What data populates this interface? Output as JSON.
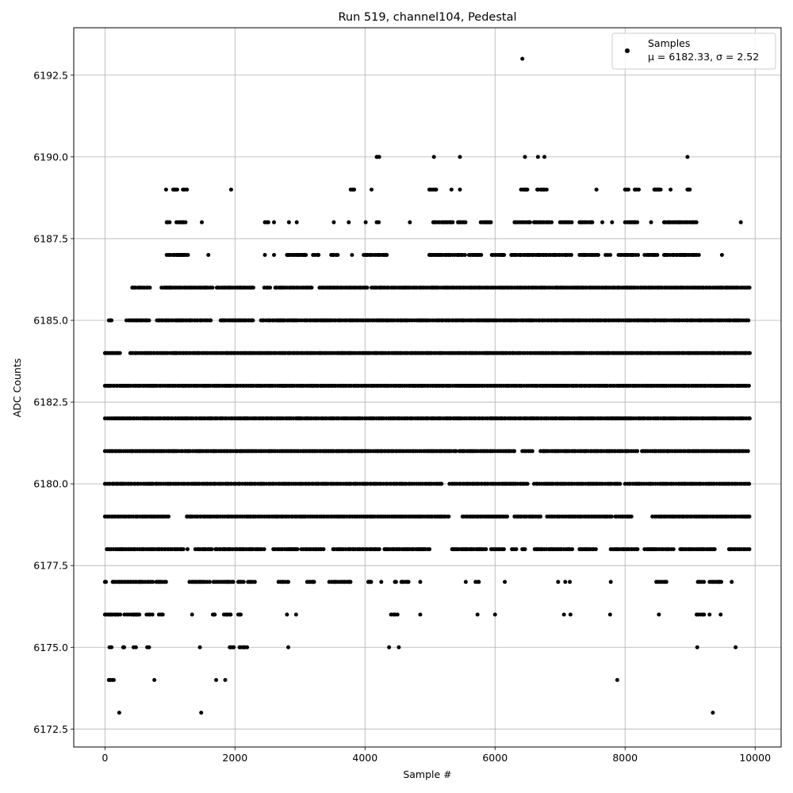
{
  "chart_data": {
    "type": "scatter",
    "title": "Run 519, channel104, Pedestal",
    "xlabel": "Sample #",
    "ylabel": "ADC Counts",
    "xlim": [
      -480,
      10400
    ],
    "ylim": [
      6171.95,
      6193.95
    ],
    "xticks": [
      0,
      2000,
      4000,
      6000,
      8000,
      10000
    ],
    "yticks": [
      6172.5,
      6175.0,
      6177.5,
      6180.0,
      6182.5,
      6185.0,
      6187.5,
      6190.0,
      6192.5
    ],
    "xtick_labels": [
      "0",
      "2000",
      "4000",
      "6000",
      "8000",
      "10000"
    ],
    "ytick_labels": [
      "6172.5",
      "6175.0",
      "6177.5",
      "6180.0",
      "6182.5",
      "6185.0",
      "6187.5",
      "6190.0",
      "6192.5"
    ],
    "grid": true,
    "legend_position": "top-right",
    "series": [
      {
        "name": "Samples",
        "legend_stats": "μ = 6182.33, σ = 2.52",
        "marker": "circle",
        "color": "#000000",
        "level_ranges": [
          {
            "y": 6193,
            "x": [
              [
                6420,
                6420
              ]
            ]
          },
          {
            "y": 6190,
            "x": [
              [
                4180,
                4220
              ],
              [
                5060,
                5060
              ],
              [
                5460,
                5460
              ],
              [
                6460,
                6460
              ],
              [
                6660,
                6660
              ],
              [
                6760,
                6760
              ],
              [
                8960,
                8960
              ]
            ]
          },
          {
            "y": 6189,
            "x": [
              [
                940,
                940
              ],
              [
                1050,
                1120
              ],
              [
                1200,
                1280
              ],
              [
                1940,
                1940
              ],
              [
                3780,
                3850
              ],
              [
                4100,
                4100
              ],
              [
                4990,
                5100
              ],
              [
                5330,
                5330
              ],
              [
                5460,
                5460
              ],
              [
                6400,
                6520
              ],
              [
                6650,
                6800
              ],
              [
                7560,
                7560
              ],
              [
                8000,
                8060
              ],
              [
                8150,
                8220
              ],
              [
                8450,
                8550
              ],
              [
                8700,
                8700
              ],
              [
                8960,
                9000
              ]
            ]
          },
          {
            "y": 6188,
            "x": [
              [
                950,
                1000
              ],
              [
                1100,
                1270
              ],
              [
                1490,
                1490
              ],
              [
                2460,
                2520
              ],
              [
                2600,
                2600
              ],
              [
                2830,
                2830
              ],
              [
                2950,
                2950
              ],
              [
                3520,
                3520
              ],
              [
                3750,
                3750
              ],
              [
                4010,
                4010
              ],
              [
                4180,
                4220
              ],
              [
                4690,
                4690
              ],
              [
                5050,
                5350
              ],
              [
                5430,
                5550
              ],
              [
                5780,
                5950
              ],
              [
                6300,
                6550
              ],
              [
                6600,
                6700
              ],
              [
                6700,
                6900
              ],
              [
                7000,
                7200
              ],
              [
                7300,
                7500
              ],
              [
                7650,
                7650
              ],
              [
                7800,
                7800
              ],
              [
                8000,
                8200
              ],
              [
                8400,
                8400
              ],
              [
                8600,
                9100
              ],
              [
                9780,
                9780
              ]
            ]
          },
          {
            "y": 6187,
            "x": [
              [
                950,
                1300
              ],
              [
                1590,
                1590
              ],
              [
                2460,
                2460
              ],
              [
                2600,
                2600
              ],
              [
                2800,
                3100
              ],
              [
                3200,
                3300
              ],
              [
                3480,
                3580
              ],
              [
                3800,
                3800
              ],
              [
                3980,
                4360
              ],
              [
                4990,
                5550
              ],
              [
                5600,
                5800
              ],
              [
                5950,
                6150
              ],
              [
                6250,
                7200
              ],
              [
                7300,
                7600
              ],
              [
                7700,
                7800
              ],
              [
                7900,
                8200
              ],
              [
                8300,
                8500
              ],
              [
                8600,
                9150
              ],
              [
                9490,
                9490
              ]
            ]
          },
          {
            "y": 6186,
            "x": [
              [
                420,
                720
              ],
              [
                870,
                1660
              ],
              [
                1720,
                2300
              ],
              [
                2450,
                2560
              ],
              [
                2620,
                3180
              ],
              [
                3300,
                4050
              ],
              [
                4100,
                4380
              ],
              [
                4400,
                9920
              ]
            ]
          },
          {
            "y": 6185,
            "x": [
              [
                60,
                110
              ],
              [
                330,
                700
              ],
              [
                800,
                1660
              ],
              [
                1780,
                2300
              ],
              [
                2400,
                9920
              ]
            ]
          },
          {
            "y": 6184,
            "x": [
              [
                0,
                250
              ],
              [
                390,
                9920
              ]
            ]
          },
          {
            "y": 6183,
            "x": [
              [
                0,
                9920
              ]
            ]
          },
          {
            "y": 6182,
            "x": [
              [
                0,
                9920
              ]
            ]
          },
          {
            "y": 6181,
            "x": [
              [
                0,
                5400
              ],
              [
                5450,
                6300
              ],
              [
                6420,
                6600
              ],
              [
                6700,
                8200
              ],
              [
                8260,
                9920
              ]
            ]
          },
          {
            "y": 6180,
            "x": [
              [
                0,
                5200
              ],
              [
                5300,
                6500
              ],
              [
                6600,
                7950
              ],
              [
                8000,
                9920
              ]
            ]
          },
          {
            "y": 6179,
            "x": [
              [
                0,
                1000
              ],
              [
                1260,
                5300
              ],
              [
                5500,
                6200
              ],
              [
                6300,
                6700
              ],
              [
                6800,
                7800
              ],
              [
                7850,
                8100
              ],
              [
                8420,
                9920
              ]
            ]
          },
          {
            "y": 6178,
            "x": [
              [
                30,
                1220
              ],
              [
                1270,
                1270
              ],
              [
                1390,
                1650
              ],
              [
                1700,
                2450
              ],
              [
                2590,
                2980
              ],
              [
                3020,
                3370
              ],
              [
                3510,
                4250
              ],
              [
                4300,
                5000
              ],
              [
                5340,
                5870
              ],
              [
                5940,
                6150
              ],
              [
                6260,
                6330
              ],
              [
                6420,
                6470
              ],
              [
                6610,
                7200
              ],
              [
                7300,
                7550
              ],
              [
                7780,
                8200
              ],
              [
                8300,
                8750
              ],
              [
                8850,
                9400
              ],
              [
                9600,
                9920
              ]
            ]
          },
          {
            "y": 6177,
            "x": [
              [
                0,
                20
              ],
              [
                120,
                740
              ],
              [
                790,
                940
              ],
              [
                1300,
                1620
              ],
              [
                1670,
                2000
              ],
              [
                2050,
                2150
              ],
              [
                2200,
                2320
              ],
              [
                2670,
                2850
              ],
              [
                3110,
                3230
              ],
              [
                3450,
                3800
              ],
              [
                4050,
                4100
              ],
              [
                4250,
                4250
              ],
              [
                4460,
                4500
              ],
              [
                4560,
                4680
              ],
              [
                4850,
                4850
              ],
              [
                5550,
                5550
              ],
              [
                5700,
                5760
              ],
              [
                6150,
                6150
              ],
              [
                6970,
                6970
              ],
              [
                7080,
                7080
              ],
              [
                7150,
                7150
              ],
              [
                7780,
                7780
              ],
              [
                8480,
                8640
              ],
              [
                9120,
                9220
              ],
              [
                9300,
                9480
              ],
              [
                9640,
                9640
              ]
            ]
          },
          {
            "y": 6176,
            "x": [
              [
                0,
                240
              ],
              [
                300,
                540
              ],
              [
                640,
                740
              ],
              [
                830,
                900
              ],
              [
                1340,
                1340
              ],
              [
                1660,
                1700
              ],
              [
                1830,
                1950
              ],
              [
                2050,
                2100
              ],
              [
                2800,
                2800
              ],
              [
                2940,
                2940
              ],
              [
                4400,
                4500
              ],
              [
                4850,
                4850
              ],
              [
                5730,
                5730
              ],
              [
                6000,
                6000
              ],
              [
                7060,
                7060
              ],
              [
                7160,
                7160
              ],
              [
                7770,
                7770
              ],
              [
                8520,
                8520
              ],
              [
                9100,
                9220
              ],
              [
                9300,
                9300
              ],
              [
                9470,
                9470
              ]
            ]
          },
          {
            "y": 6175,
            "x": [
              [
                70,
                120
              ],
              [
                280,
                300
              ],
              [
                440,
                480
              ],
              [
                650,
                700
              ],
              [
                1460,
                1460
              ],
              [
                1920,
                2000
              ],
              [
                2070,
                2220
              ],
              [
                2820,
                2820
              ],
              [
                4370,
                4370
              ],
              [
                4520,
                4520
              ],
              [
                9110,
                9110
              ],
              [
                9700,
                9700
              ]
            ]
          },
          {
            "y": 6174,
            "x": [
              [
                60,
                150
              ],
              [
                760,
                760
              ],
              [
                1710,
                1710
              ],
              [
                1850,
                1850
              ],
              [
                7880,
                7880
              ]
            ]
          },
          {
            "y": 6173,
            "x": [
              [
                220,
                220
              ],
              [
                1480,
                1480
              ],
              [
                9350,
                9350
              ]
            ]
          }
        ]
      }
    ]
  }
}
